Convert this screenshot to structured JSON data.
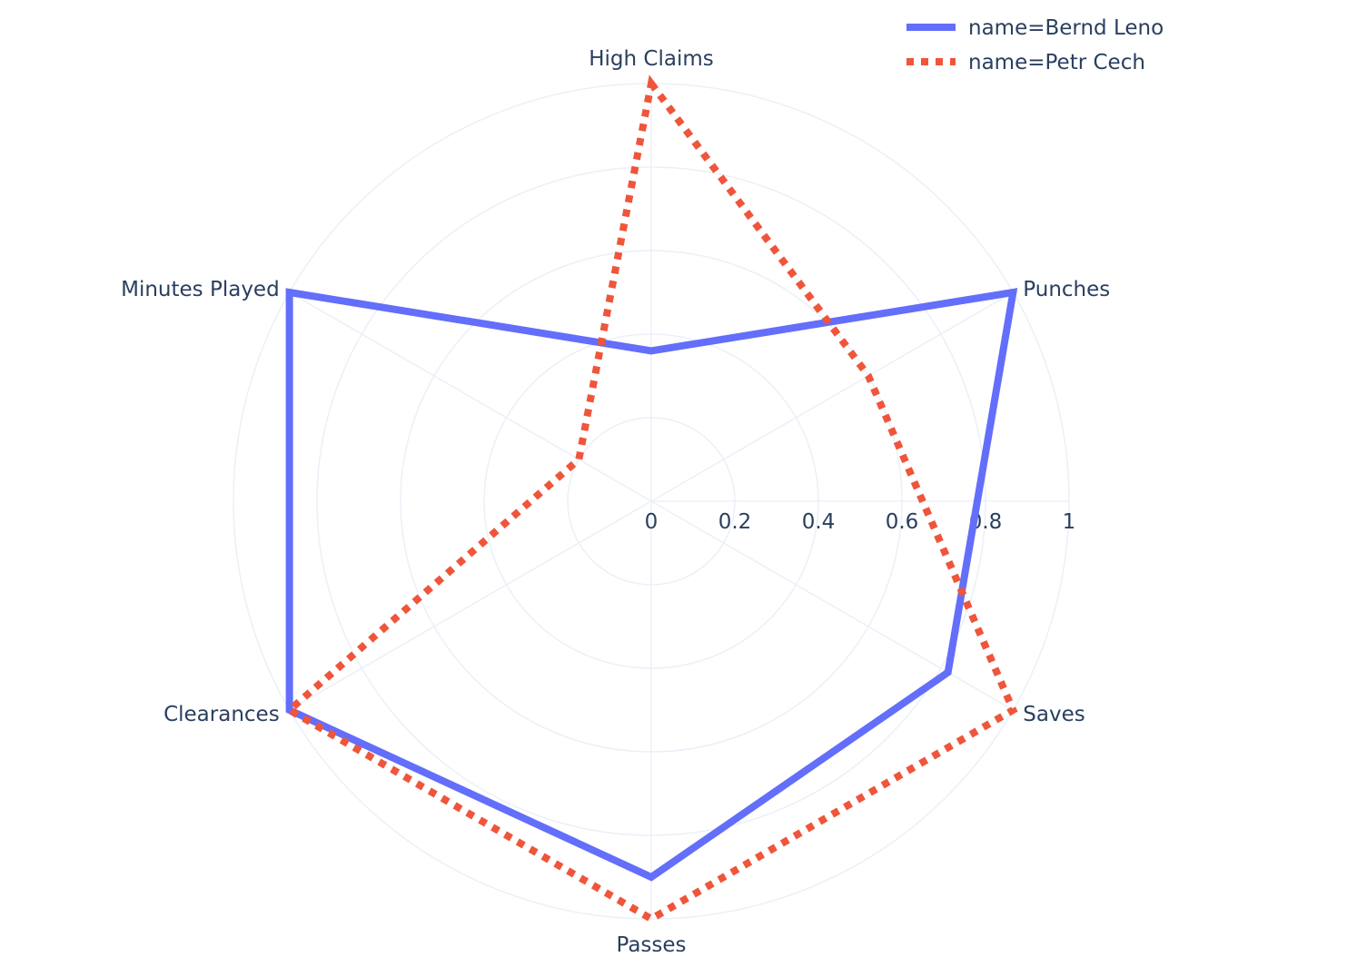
{
  "chart_data": {
    "type": "radar",
    "title": "",
    "categories": [
      "High Claims",
      "Punches",
      "Saves",
      "Passes",
      "Clearances",
      "Minutes Played"
    ],
    "radial_axis": {
      "range": [
        0,
        1
      ],
      "ticks": [
        "0",
        "0.2",
        "0.4",
        "0.6",
        "0.8",
        "1"
      ],
      "tick_values": [
        0,
        0.2,
        0.4,
        0.6,
        0.8,
        1
      ]
    },
    "grid": true,
    "legend_position": "top-right",
    "series": [
      {
        "name": "name=Bernd Leno",
        "values": [
          0.36,
          1.0,
          0.82,
          0.9,
          1.0,
          1.0
        ],
        "color": "#636efa",
        "line_style": "solid"
      },
      {
        "name": "name=Petr Cech",
        "values": [
          1.0,
          0.6,
          1.0,
          1.0,
          1.0,
          0.2
        ],
        "color": "#ef553b",
        "line_style": "dotted"
      }
    ]
  }
}
